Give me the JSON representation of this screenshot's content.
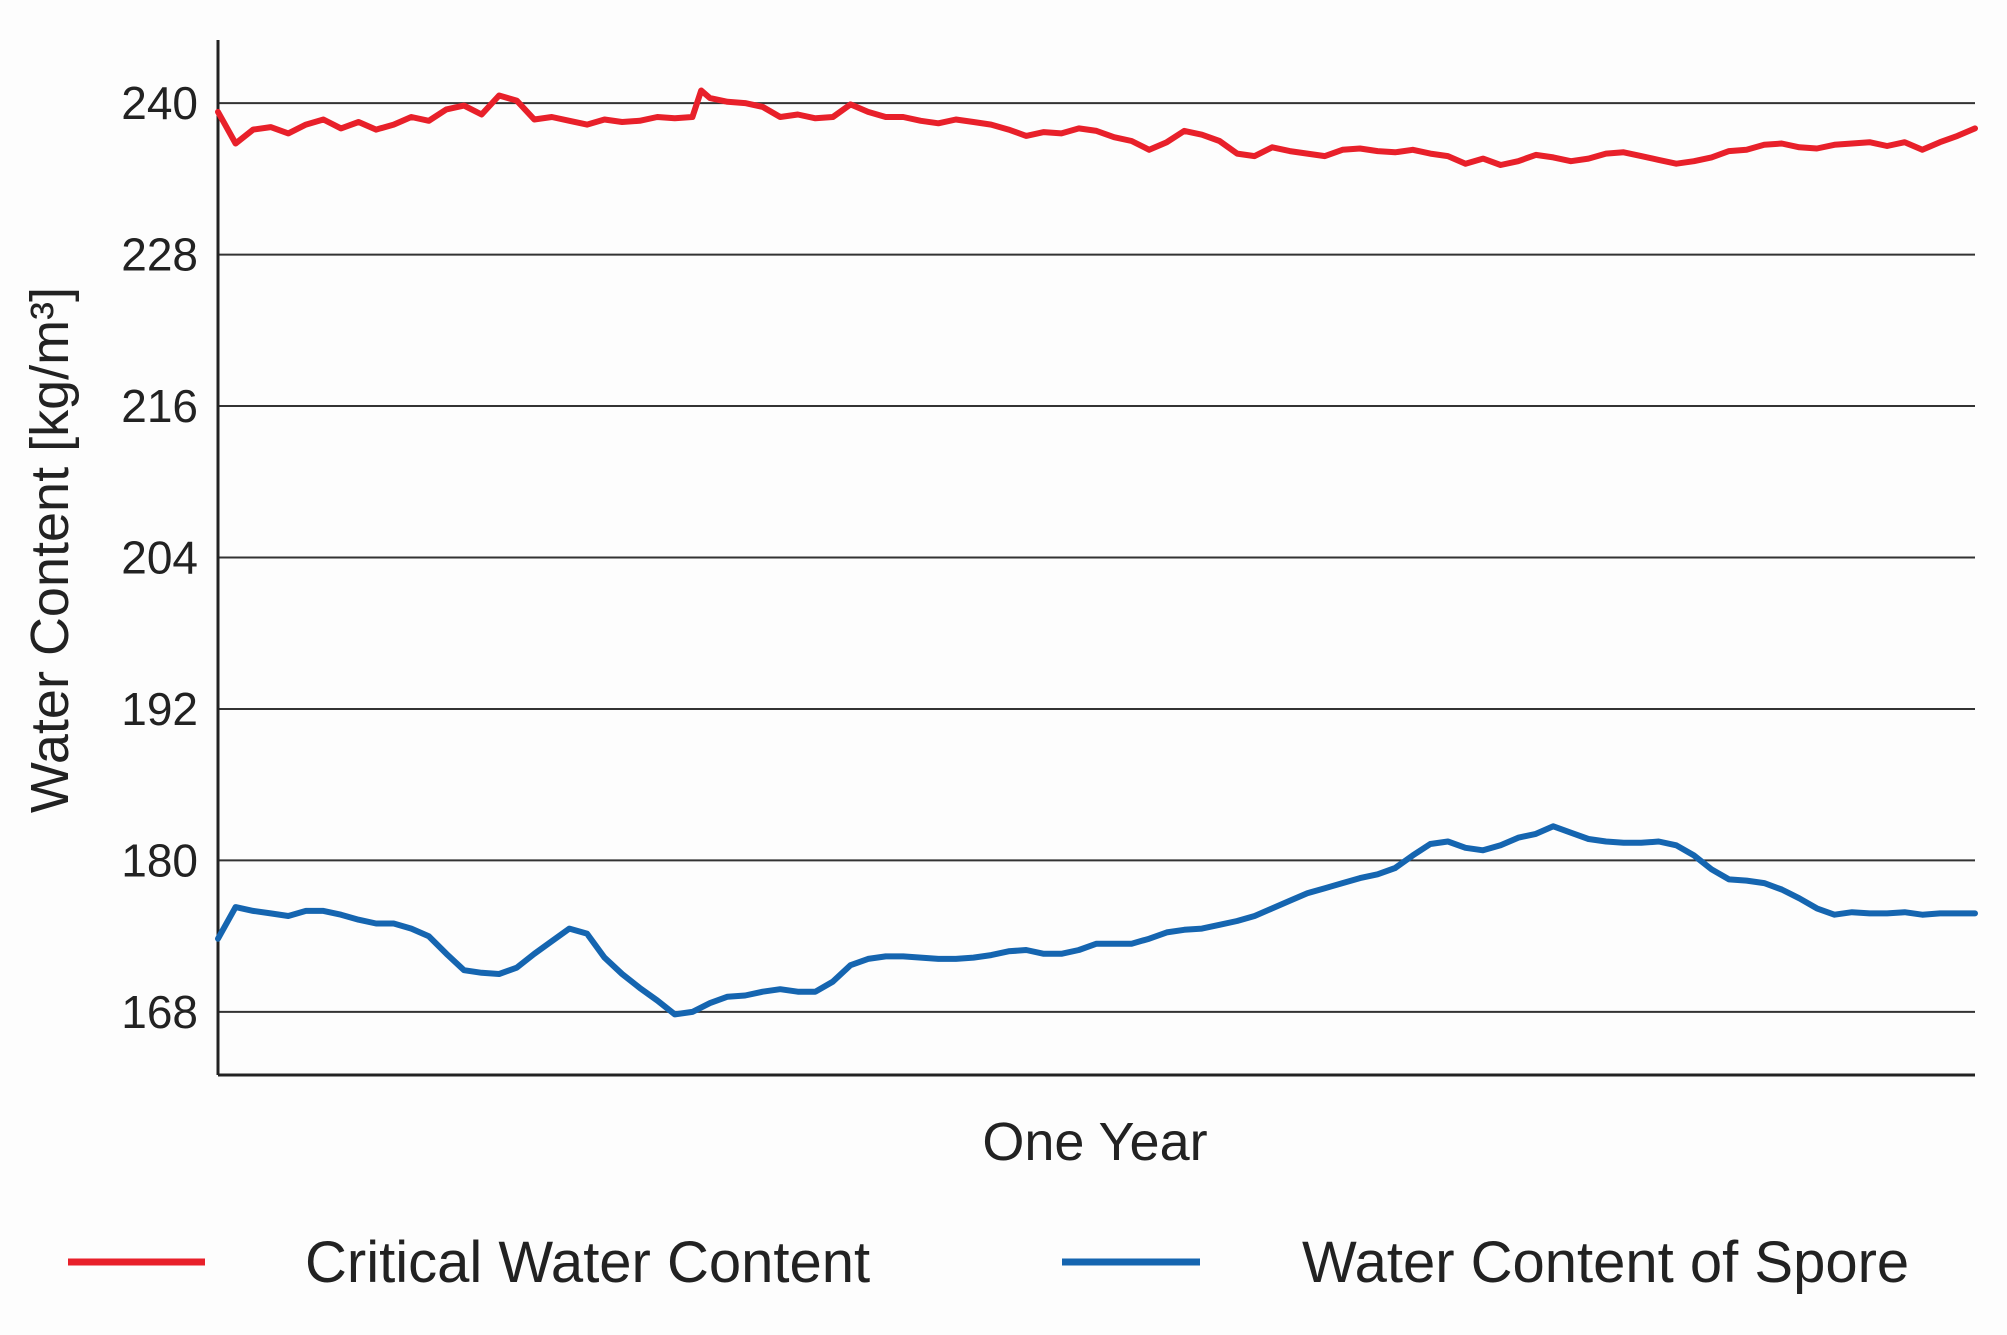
{
  "chart_data": {
    "type": "line",
    "title": "",
    "xlabel": "One Year",
    "ylabel": "Water Content [kg/m³]",
    "ylim": [
      163,
      245
    ],
    "xlim": [
      0,
      100
    ],
    "yticks": [
      168,
      180,
      192,
      204,
      216,
      228,
      240
    ],
    "ytick_labels": [
      "168",
      "180",
      "192",
      "204",
      "216",
      "228",
      "240"
    ],
    "grid": "horizontal",
    "legend_position": "bottom",
    "series": [
      {
        "name": "Critical Water Content",
        "color": "#e8202a",
        "x": [
          0,
          1,
          2,
          3,
          4,
          5,
          6,
          7,
          8,
          9,
          10,
          11,
          12,
          13,
          14,
          15,
          16,
          17,
          18,
          19,
          20,
          21,
          22,
          23,
          24,
          25,
          26,
          27,
          27.5,
          28,
          29,
          30,
          31,
          32,
          33,
          34,
          35,
          36,
          37,
          38,
          39,
          40,
          41,
          42,
          43,
          44,
          45,
          46,
          47,
          48,
          49,
          50,
          51,
          52,
          53,
          54,
          55,
          56,
          57,
          58,
          59,
          60,
          61,
          62,
          63,
          64,
          65,
          66,
          67,
          68,
          69,
          70,
          71,
          72,
          73,
          74,
          75,
          76,
          77,
          78,
          79,
          80,
          81,
          82,
          83,
          84,
          85,
          86,
          87,
          88,
          89,
          90,
          91,
          92,
          93,
          94,
          95,
          96,
          97,
          98,
          99,
          100
        ],
        "values": [
          239.3,
          236.8,
          237.9,
          238.1,
          237.6,
          238.3,
          238.7,
          238.0,
          238.5,
          237.9,
          238.3,
          238.9,
          238.6,
          239.5,
          239.8,
          239.1,
          240.6,
          240.2,
          238.7,
          238.9,
          238.6,
          238.3,
          238.7,
          238.5,
          238.6,
          238.9,
          238.8,
          238.9,
          241.0,
          240.4,
          240.1,
          240.0,
          239.7,
          238.9,
          239.1,
          238.8,
          238.9,
          239.9,
          239.3,
          238.9,
          238.9,
          238.6,
          238.4,
          238.7,
          238.5,
          238.3,
          237.9,
          237.4,
          237.7,
          237.6,
          238.0,
          237.8,
          237.3,
          237.0,
          236.3,
          236.9,
          237.8,
          237.5,
          237.0,
          236.0,
          235.8,
          236.5,
          236.2,
          236.0,
          235.8,
          236.3,
          236.4,
          236.2,
          236.1,
          236.3,
          236.0,
          235.8,
          235.2,
          235.6,
          235.1,
          235.4,
          235.9,
          235.7,
          235.4,
          235.6,
          236.0,
          236.1,
          235.8,
          235.5,
          235.2,
          235.4,
          235.7,
          236.2,
          236.3,
          236.7,
          236.8,
          236.5,
          236.4,
          236.7,
          236.8,
          236.9,
          236.6,
          236.9,
          236.3,
          236.9,
          237.4,
          238.0
        ]
      },
      {
        "name": "Water Content of Spore",
        "color": "#1565b0",
        "x": [
          0,
          1,
          2,
          3,
          4,
          5,
          6,
          7,
          8,
          9,
          10,
          11,
          12,
          13,
          14,
          15,
          16,
          17,
          18,
          19,
          20,
          21,
          22,
          23,
          24,
          25,
          26,
          27,
          28,
          29,
          30,
          31,
          32,
          33,
          34,
          35,
          36,
          37,
          38,
          39,
          40,
          41,
          42,
          43,
          44,
          45,
          46,
          47,
          48,
          49,
          50,
          51,
          52,
          53,
          54,
          55,
          56,
          57,
          58,
          59,
          60,
          61,
          62,
          63,
          64,
          65,
          66,
          67,
          68,
          69,
          70,
          71,
          72,
          73,
          74,
          75,
          76,
          77,
          78,
          79,
          80,
          81,
          82,
          83,
          84,
          85,
          86,
          87,
          88,
          89,
          90,
          91,
          92,
          93,
          94,
          95,
          96,
          97,
          98,
          99,
          100
        ],
        "values": [
          173.8,
          176.3,
          176.0,
          175.8,
          175.6,
          176.0,
          176.0,
          175.7,
          175.3,
          175.0,
          175.0,
          174.6,
          174.0,
          172.6,
          171.3,
          171.1,
          171.0,
          171.5,
          172.6,
          173.6,
          174.6,
          174.2,
          172.3,
          171.0,
          169.9,
          168.9,
          167.8,
          168.0,
          168.7,
          169.2,
          169.3,
          169.6,
          169.8,
          169.6,
          169.6,
          170.4,
          171.7,
          172.2,
          172.4,
          172.4,
          172.3,
          172.2,
          172.2,
          172.3,
          172.5,
          172.8,
          172.9,
          172.6,
          172.6,
          172.9,
          173.4,
          173.4,
          173.4,
          173.8,
          174.3,
          174.5,
          174.6,
          174.9,
          175.2,
          175.6,
          176.2,
          176.8,
          177.4,
          177.8,
          178.2,
          178.6,
          178.9,
          179.4,
          180.4,
          181.3,
          181.5,
          181.0,
          180.8,
          181.2,
          181.8,
          182.1,
          182.7,
          182.2,
          181.7,
          181.5,
          181.4,
          181.4,
          181.5,
          181.2,
          180.4,
          179.3,
          178.5,
          178.4,
          178.2,
          177.7,
          177.0,
          176.2,
          175.7,
          175.9,
          175.8,
          175.8,
          175.9,
          175.7,
          175.8,
          175.8,
          175.8
        ]
      }
    ]
  }
}
